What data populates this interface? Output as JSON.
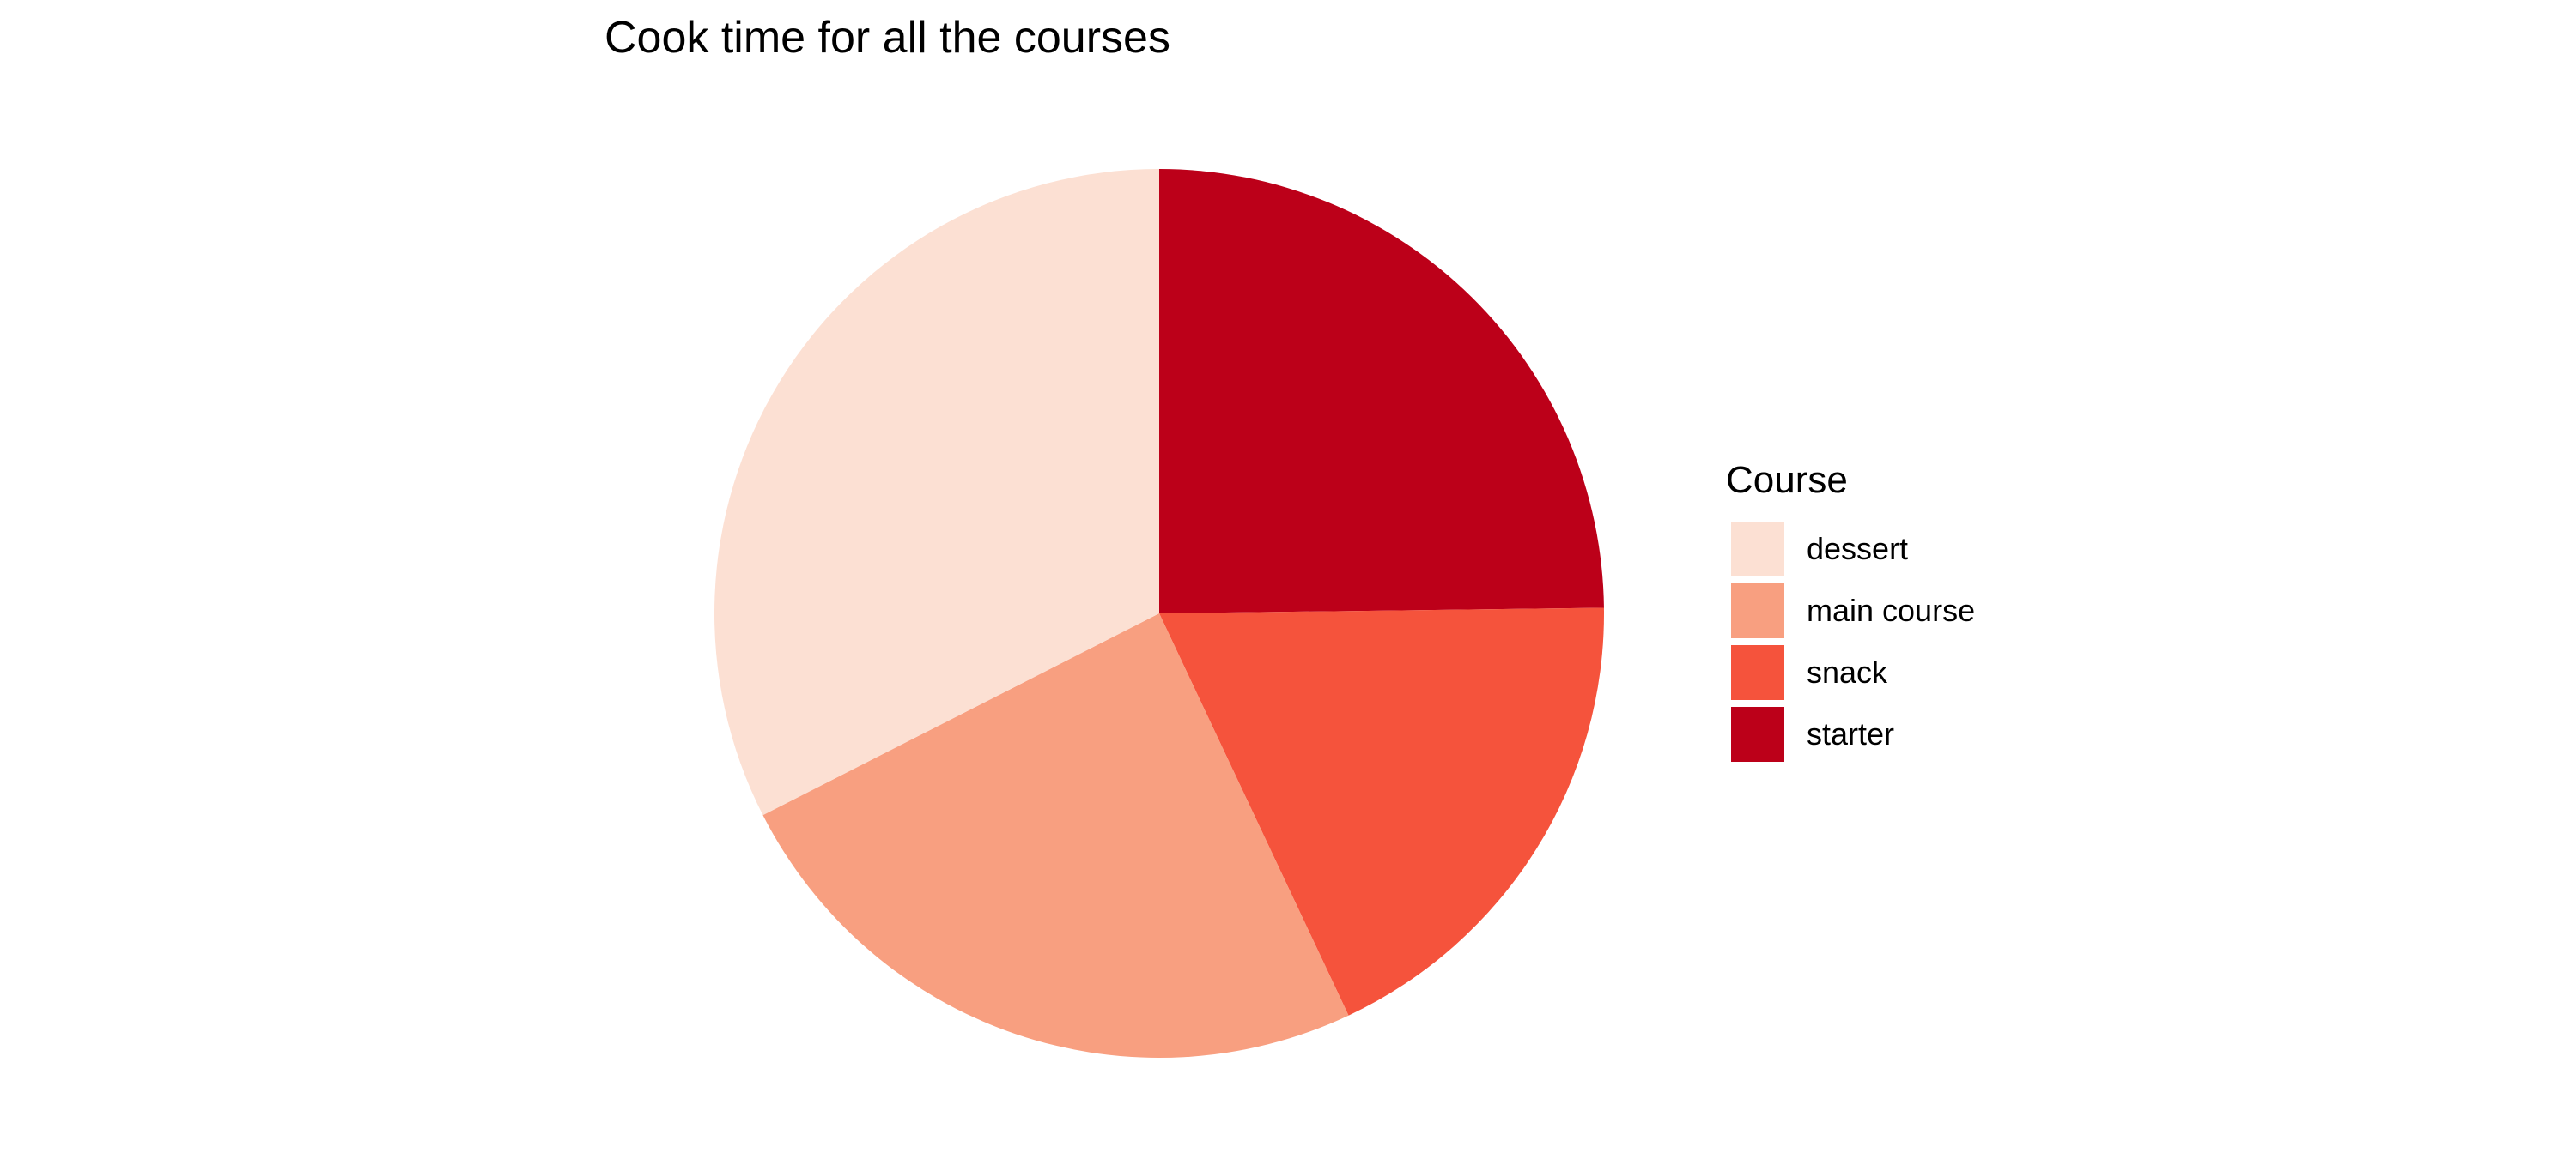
{
  "chart_data": {
    "type": "pie",
    "title": "Cook time for all the courses",
    "legend_title": "Course",
    "legend_position": "right",
    "categories": [
      "dessert",
      "main course",
      "snack",
      "starter"
    ],
    "values": [
      32.5,
      24.5,
      18.2,
      24.8
    ],
    "colors": [
      "#FCE0D3",
      "#F89F80",
      "#F5533C",
      "#BC0019"
    ]
  }
}
